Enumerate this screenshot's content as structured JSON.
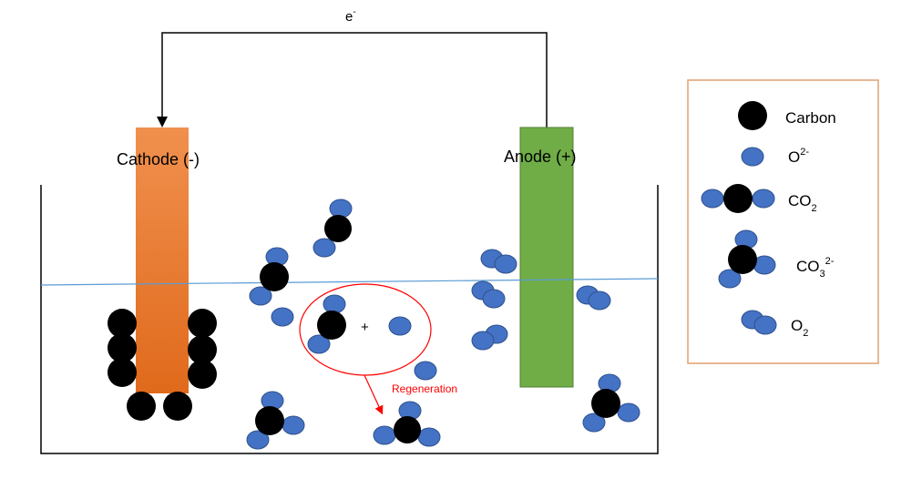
{
  "circuit": {
    "electron_label": "e",
    "electron_sup": "-"
  },
  "cathode": {
    "label": "Cathode (-)",
    "color_top": "#f0904e",
    "color_bottom": "#e06a1c"
  },
  "anode": {
    "label": "Anode (+)",
    "color": "#70ad47"
  },
  "reaction": {
    "plus": "+",
    "regeneration_label": "Regeneration",
    "accent": "#ff0000"
  },
  "colors": {
    "oxygen": "#4472c4",
    "carbon": "#000000",
    "electrolyte_line": "#5b9bd5"
  },
  "legend": {
    "carbon": {
      "text": "Carbon"
    },
    "oxide": {
      "base": "O",
      "sup": "2-"
    },
    "co2": {
      "base": "CO",
      "sub": "2"
    },
    "carbonate": {
      "base": "CO",
      "sub": "3",
      "sup": "2-"
    },
    "o2": {
      "base": "O",
      "sub": "2"
    }
  }
}
